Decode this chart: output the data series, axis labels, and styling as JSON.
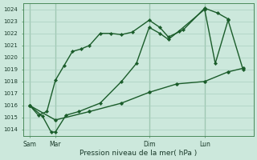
{
  "xlabel": "Pression niveau de la mer( hPa )",
  "bg_color": "#cce8dc",
  "grid_color": "#aacfbf",
  "line_color": "#1a5c2a",
  "ylim": [
    1013.5,
    1024.5
  ],
  "yticks": [
    1014,
    1015,
    1016,
    1017,
    1018,
    1019,
    1020,
    1021,
    1022,
    1023,
    1024
  ],
  "xtick_labels": [
    "Sam",
    "Mar",
    "Dim",
    "Lun"
  ],
  "xtick_positions": [
    0.0,
    0.12,
    0.56,
    0.82
  ],
  "vline_positions": [
    0.0,
    0.12,
    0.56,
    0.82
  ],
  "xlim": [
    -0.03,
    1.05
  ],
  "line1_x": [
    0.0,
    0.04,
    0.08,
    0.12,
    0.16,
    0.2,
    0.24,
    0.28,
    0.33,
    0.38,
    0.43,
    0.48,
    0.56,
    0.61,
    0.65,
    0.72,
    0.82,
    0.88,
    0.93
  ],
  "line1_y": [
    1016.0,
    1015.2,
    1015.5,
    1018.1,
    1019.3,
    1020.5,
    1020.7,
    1021.0,
    1022.0,
    1022.0,
    1021.9,
    1022.1,
    1023.1,
    1022.5,
    1021.7,
    1022.3,
    1024.1,
    1023.7,
    1023.2
  ],
  "line2_x": [
    0.0,
    0.06,
    0.1,
    0.12,
    0.17,
    0.23,
    0.33,
    0.43,
    0.5,
    0.56,
    0.61,
    0.65,
    0.7,
    0.82,
    0.87,
    0.93,
    1.0
  ],
  "line2_y": [
    1016.0,
    1015.1,
    1013.8,
    1013.8,
    1015.2,
    1015.5,
    1016.2,
    1018.0,
    1019.5,
    1022.5,
    1022.0,
    1021.5,
    1022.2,
    1024.0,
    1019.5,
    1023.1,
    1019.0
  ],
  "line3_x": [
    0.0,
    0.12,
    0.28,
    0.43,
    0.56,
    0.69,
    0.82,
    0.93,
    1.0
  ],
  "line3_y": [
    1016.0,
    1014.8,
    1015.5,
    1016.2,
    1017.1,
    1017.8,
    1018.0,
    1018.8,
    1019.1
  ],
  "figsize": [
    3.2,
    2.0
  ],
  "dpi": 100
}
